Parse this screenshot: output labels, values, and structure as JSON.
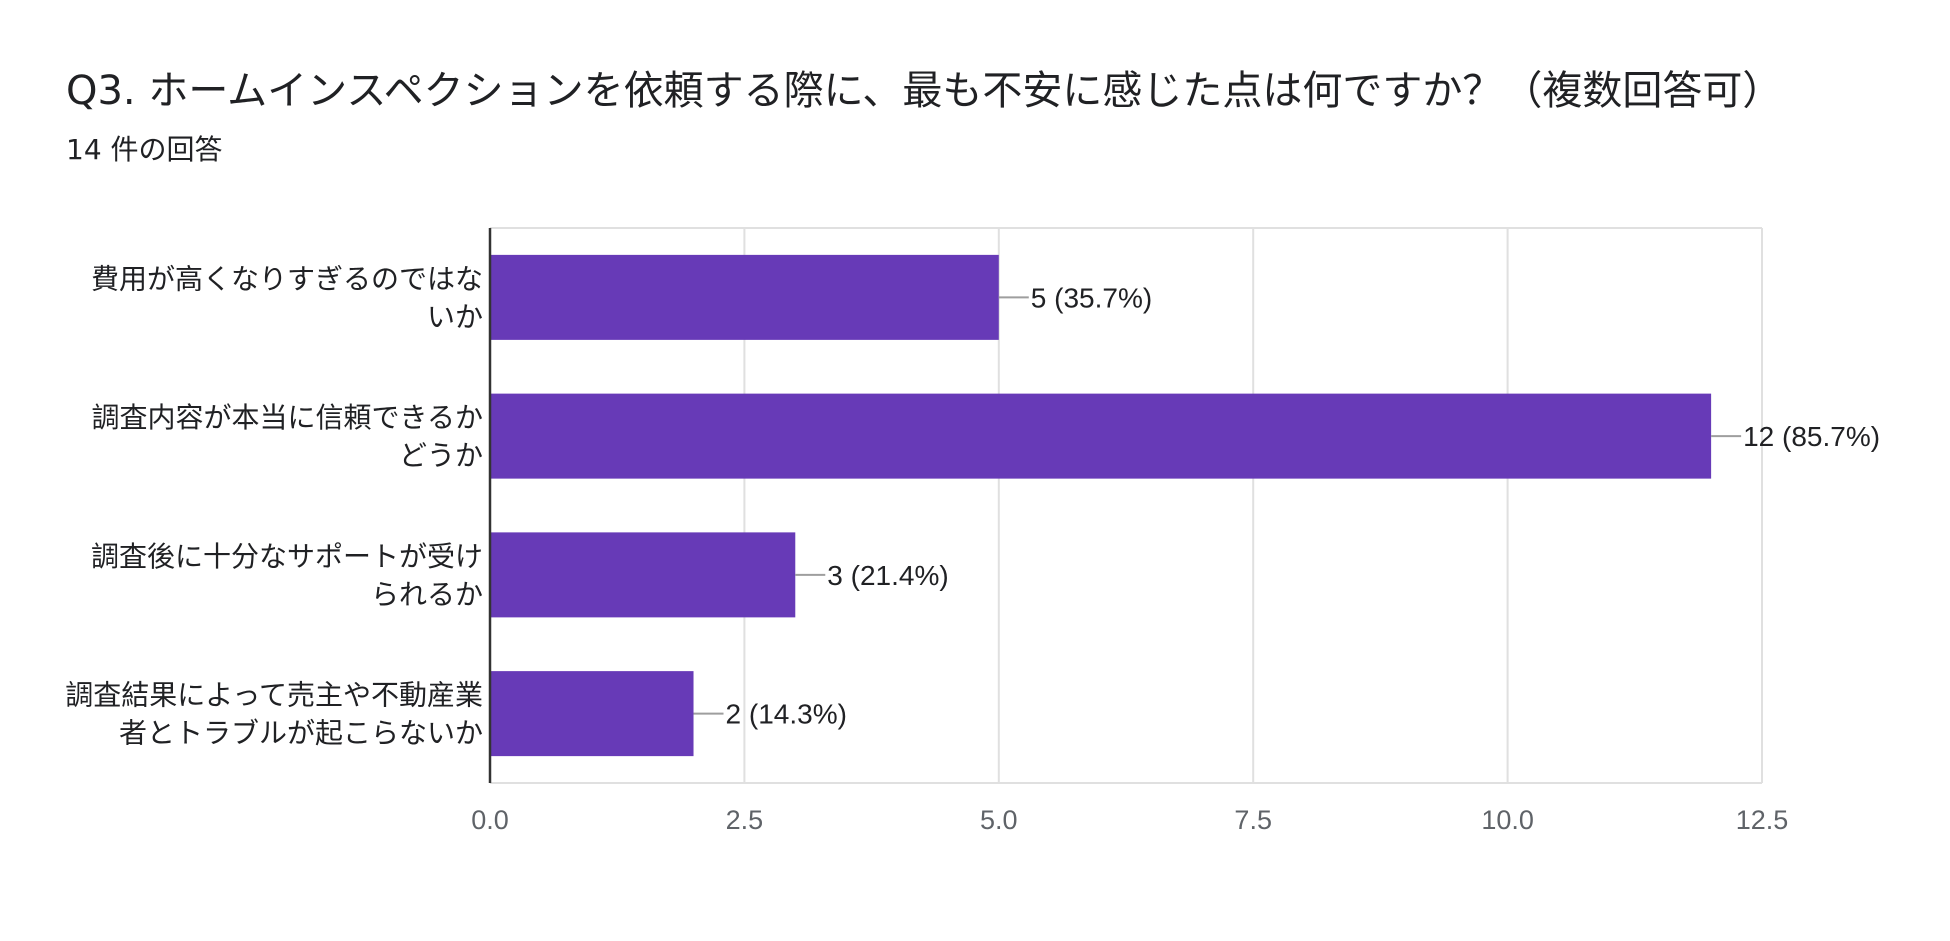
{
  "header": {
    "title": "Q3. ホームインスペクションを依頼する際に、最も不安に感じた点は何ですか？（複数回答可）",
    "response_count": "14 件の回答"
  },
  "colors": {
    "bar": "#673ab7",
    "grid": "#e0e0e0",
    "axis": "#333333",
    "leader": "#9e9e9e"
  },
  "chart_data": {
    "type": "bar",
    "orientation": "horizontal",
    "categories": [
      [
        "費用が高くなりすぎるのではな",
        "いか"
      ],
      [
        "調査内容が本当に信頼できるか",
        "どうか"
      ],
      [
        "調査後に十分なサポートが受け",
        "られるか"
      ],
      [
        "調査結果によって売主や不動産業",
        "者とトラブルが起こらないか"
      ]
    ],
    "values": [
      5,
      12,
      3,
      2
    ],
    "value_labels": [
      "5 (35.7%)",
      "12 (85.7%)",
      "3 (21.4%)",
      "2 (14.3%)"
    ],
    "xlim": [
      0,
      12.5
    ],
    "ticks": [
      0,
      2.5,
      5,
      7.5,
      10,
      12.5
    ],
    "tick_labels": [
      "0.0",
      "2.5",
      "5.0",
      "7.5",
      "10.0",
      "12.5"
    ],
    "grid": true,
    "title": "",
    "xlabel": "",
    "ylabel": ""
  }
}
